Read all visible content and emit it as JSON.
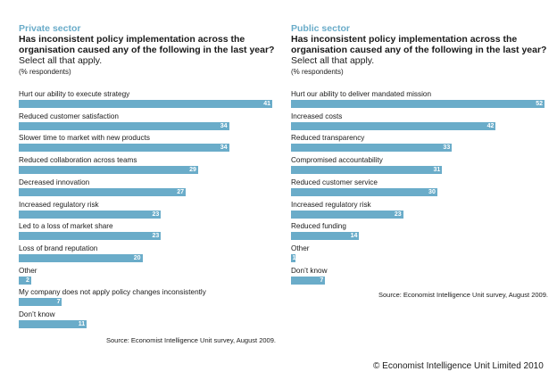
{
  "copyright": "© Economist Intelligence Unit Limited 2010",
  "chart_data": [
    {
      "type": "bar",
      "orientation": "horizontal",
      "sector": "Private sector",
      "title": "Has inconsistent policy implementation across the organisation caused any of the following in the last year?",
      "subtitle": "Select all that apply.",
      "unit": "(% respondents)",
      "source": "Source: Economist Intelligence Unit survey, August 2009.",
      "categories": [
        "Hurt our ability to execute strategy",
        "Reduced customer satisfaction",
        "Slower time to market with new products",
        "Reduced collaboration across teams",
        "Decreased innovation",
        "Increased regulatory risk",
        "Led to a loss of market share",
        "Loss of brand reputation",
        "Other",
        "My company does not apply policy changes inconsistently",
        "Don’t know"
      ],
      "values": [
        41,
        34,
        34,
        29,
        27,
        23,
        23,
        20,
        2,
        7,
        11
      ],
      "xlim": [
        0,
        41
      ],
      "bar_color": "#6aacc9",
      "sector_color": "#6aacc9"
    },
    {
      "type": "bar",
      "orientation": "horizontal",
      "sector": "Public sector",
      "title": "Has inconsistent policy implementation across the organisation caused any of the following in the last year?",
      "subtitle": "Select all that apply.",
      "unit": "(% respondents)",
      "source": "Source: Economist Intelligence Unit survey, August 2009.",
      "categories": [
        "Hurt our ability to deliver mandated mission",
        "Increased costs",
        "Reduced transparency",
        "Compromised accountability",
        "Reduced customer service",
        "Increased regulatory risk",
        "Reduced funding",
        "Other",
        "Don’t know"
      ],
      "values": [
        52,
        42,
        33,
        31,
        30,
        23,
        14,
        1,
        7
      ],
      "xlim": [
        0,
        52
      ],
      "bar_color": "#6aacc9",
      "sector_color": "#6aacc9"
    }
  ]
}
